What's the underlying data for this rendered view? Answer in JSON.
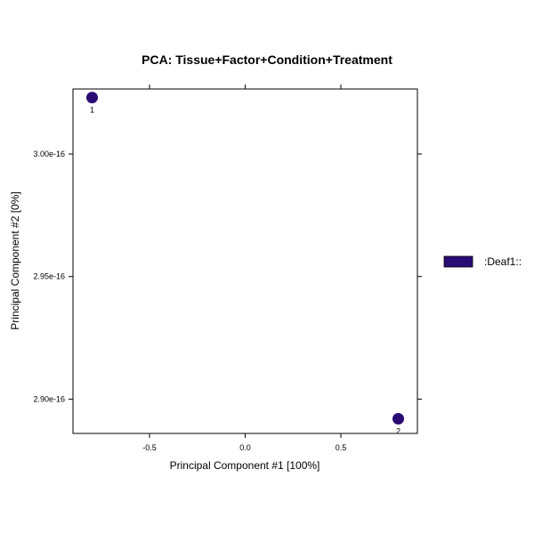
{
  "chart_data": {
    "type": "scatter",
    "title": "PCA: Tissue+Factor+Condition+Treatment",
    "xlabel": "Principal Component #1 [100%]",
    "ylabel": "Principal Component #2 [0%]",
    "xlim": [
      -0.9,
      0.9
    ],
    "ylim": [
      2.886e-16,
      3.0265e-16
    ],
    "x_ticks": [
      {
        "value": -0.5,
        "label": "-0.5"
      },
      {
        "value": 0.0,
        "label": "0.0"
      },
      {
        "value": 0.5,
        "label": "0.5"
      }
    ],
    "y_ticks": [
      {
        "value": 3e-16,
        "label": "3.00e-16"
      },
      {
        "value": 2.95e-16,
        "label": "2.95e-16"
      },
      {
        "value": 2.9e-16,
        "label": "2.90e-16"
      }
    ],
    "grid": false,
    "legend_position": "right",
    "series": [
      {
        "name": ":Deaf1::",
        "color": "#2a0a73",
        "points": [
          {
            "x": -0.8,
            "y": 3.023e-16,
            "label": "1"
          },
          {
            "x": 0.8,
            "y": 2.892e-16,
            "label": "2"
          }
        ]
      }
    ]
  }
}
